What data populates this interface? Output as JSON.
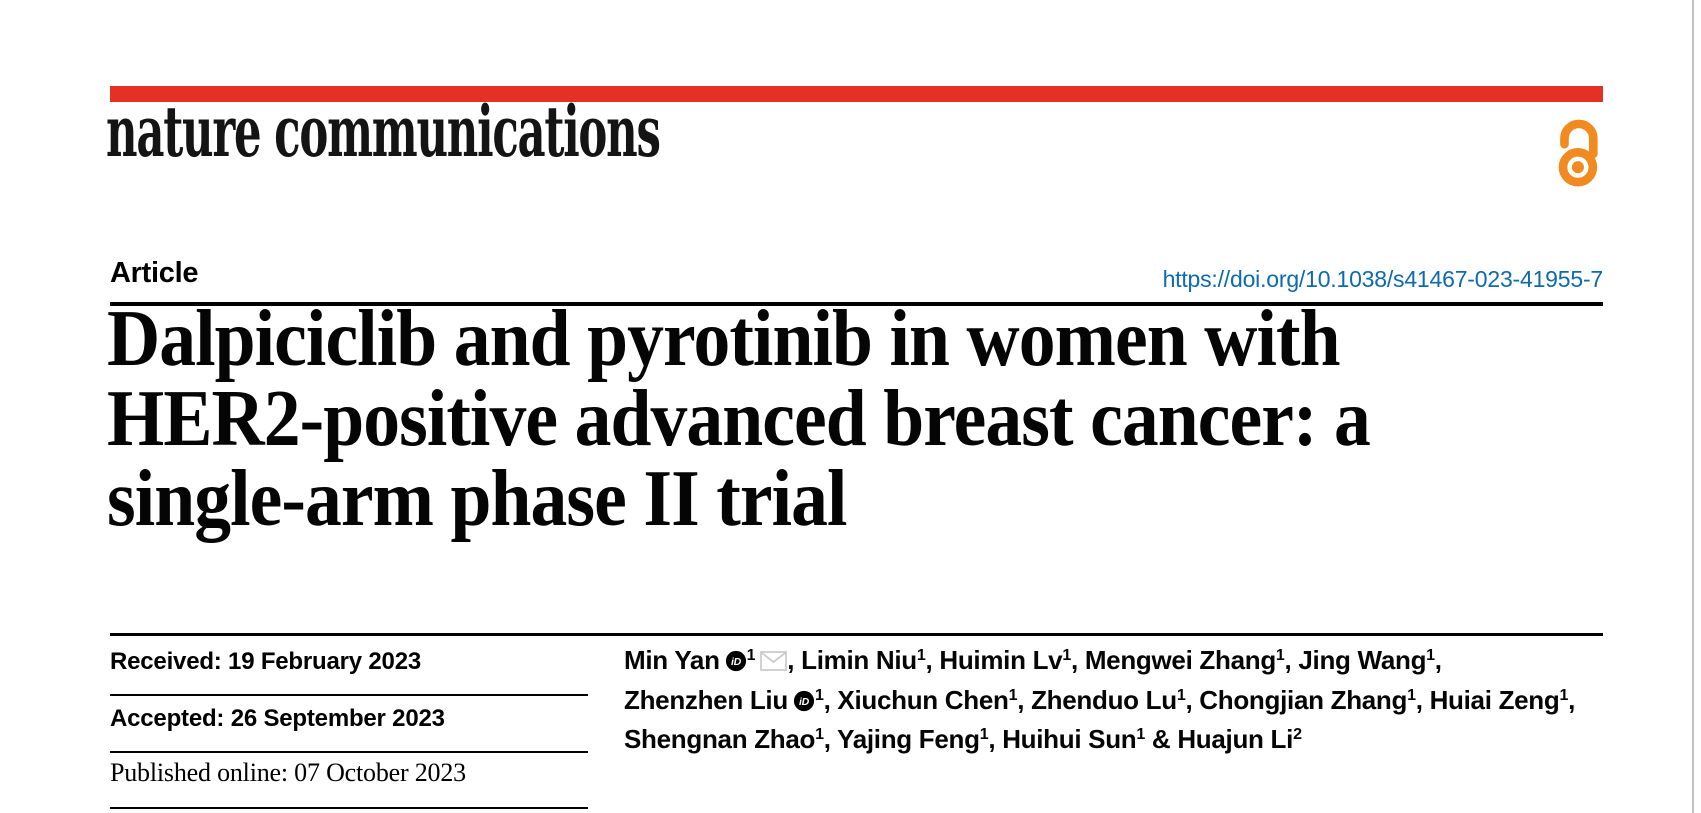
{
  "journal": {
    "name": "nature communications"
  },
  "icons": {
    "open_access": "open-access-padlock",
    "orcid_text": "iD",
    "email": "envelope"
  },
  "colors": {
    "accent_red": "#e53125",
    "link_blue": "#0d6ab0",
    "oa_orange": "#f18b21",
    "text_black": "#000000"
  },
  "article": {
    "label": "Article",
    "doi": "https://doi.org/10.1038/s41467-023-41955-7",
    "title_lines": [
      "Dalpiciclib and pyrotinib in women with",
      "HER2-positive advanced breast cancer: a",
      "single-arm phase II trial"
    ]
  },
  "dates": {
    "received": "Received: 19 February 2023",
    "accepted": "Accepted: 26 September 2023",
    "published": "Published online: 07 October 2023"
  },
  "authors": {
    "lines": [
      {
        "items": [
          {
            "name": "Min Yan",
            "orcid": true,
            "sup": "1",
            "email": true,
            "sep": ", "
          },
          {
            "name": "Limin Niu",
            "sup": "1",
            "sep": ", "
          },
          {
            "name": "Huimin Lv",
            "sup": "1",
            "sep": ", "
          },
          {
            "name": "Mengwei Zhang",
            "sup": "1",
            "sep": ", "
          },
          {
            "name": "Jing Wang",
            "sup": "1",
            "sep": ","
          }
        ]
      },
      {
        "items": [
          {
            "name": "Zhenzhen Liu",
            "orcid": true,
            "sup": "1",
            "sep": ", "
          },
          {
            "name": "Xiuchun Chen",
            "sup": "1",
            "sep": ", "
          },
          {
            "name": "Zhenduo Lu",
            "sup": "1",
            "sep": ", "
          },
          {
            "name": "Chongjian Zhang",
            "sup": "1",
            "sep": ", "
          },
          {
            "name": "Huiai Zeng",
            "sup": "1",
            "sep": ","
          }
        ]
      },
      {
        "items": [
          {
            "name": "Shengnan Zhao",
            "sup": "1",
            "sep": ", "
          },
          {
            "name": "Yajing Feng",
            "sup": "1",
            "sep": ", "
          },
          {
            "name": "Huihui Sun",
            "sup": "1",
            "sep": " & "
          },
          {
            "name": "Huajun Li",
            "sup": "2",
            "sep": ""
          }
        ]
      }
    ]
  }
}
